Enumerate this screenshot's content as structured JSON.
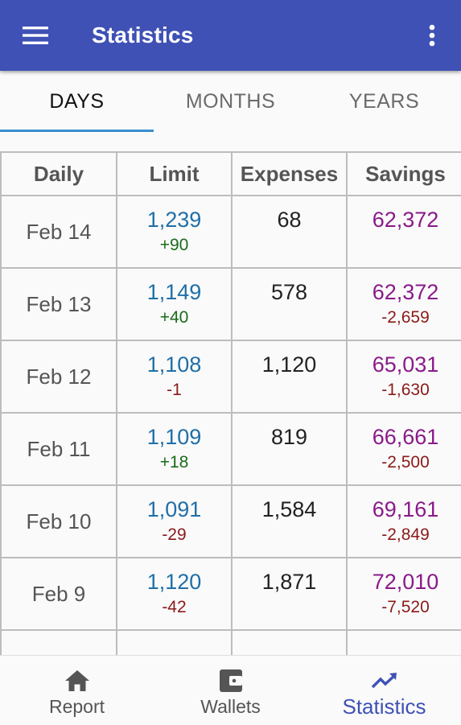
{
  "app_bar": {
    "title": "Statistics"
  },
  "tabs": [
    {
      "label": "DAYS",
      "active": true
    },
    {
      "label": "MONTHS",
      "active": false
    },
    {
      "label": "YEARS",
      "active": false
    }
  ],
  "table": {
    "headers": [
      "Daily",
      "Limit",
      "Expenses",
      "Savings"
    ],
    "rows": [
      {
        "date": "Feb 14",
        "limit": "1,239",
        "limit_change": "+90",
        "expenses": "68",
        "savings": "62,372",
        "savings_change": ""
      },
      {
        "date": "Feb 13",
        "limit": "1,149",
        "limit_change": "+40",
        "expenses": "578",
        "savings": "62,372",
        "savings_change": "-2,659"
      },
      {
        "date": "Feb 12",
        "limit": "1,108",
        "limit_change": "-1",
        "expenses": "1,120",
        "savings": "65,031",
        "savings_change": "-1,630"
      },
      {
        "date": "Feb 11",
        "limit": "1,109",
        "limit_change": "+18",
        "expenses": "819",
        "savings": "66,661",
        "savings_change": "-2,500"
      },
      {
        "date": "Feb 10",
        "limit": "1,091",
        "limit_change": "-29",
        "expenses": "1,584",
        "savings": "69,161",
        "savings_change": "-2,849"
      },
      {
        "date": "Feb 9",
        "limit": "1,120",
        "limit_change": "-42",
        "expenses": "1,871",
        "savings": "72,010",
        "savings_change": "-7,520"
      }
    ]
  },
  "bottom_nav": [
    {
      "label": "Report",
      "icon": "home-icon",
      "active": false
    },
    {
      "label": "Wallets",
      "icon": "wallet-icon",
      "active": false
    },
    {
      "label": "Statistics",
      "icon": "trending-up-icon",
      "active": true
    }
  ],
  "colors": {
    "app_bar": "#3f51b5",
    "tab_indicator": "#3a8ed0",
    "limit": "#1f6fa8",
    "savings": "#8a1a8a",
    "positive_change": "#1a6b1a",
    "negative_change": "#8b1a1a"
  }
}
